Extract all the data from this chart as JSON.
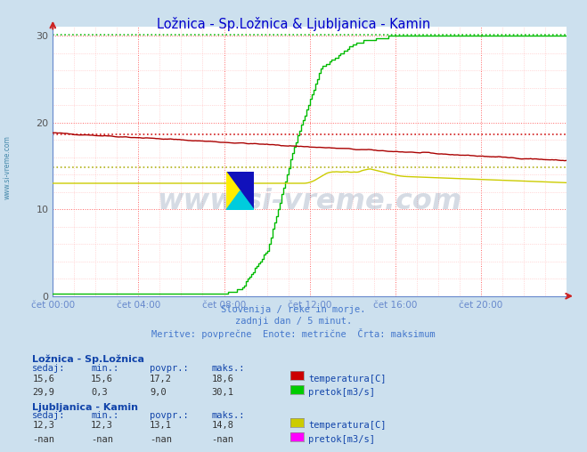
{
  "title": "Ložnica - Sp.Ložnica & Ljubljanica - Kamin",
  "title_color": "#0000cc",
  "bg_color": "#cce0ee",
  "plot_bg_color": "#ffffff",
  "xlim": [
    0,
    288
  ],
  "ylim": [
    0,
    31
  ],
  "yticks": [
    0,
    10,
    20,
    30
  ],
  "xtick_labels": [
    "čet 00:00",
    "čet 04:00",
    "čet 08:00",
    "čet 12:00",
    "čet 16:00",
    "čet 20:00"
  ],
  "xtick_positions": [
    0,
    48,
    96,
    144,
    192,
    240
  ],
  "subtitle_lines": [
    "Slovenija / reke in morje.",
    "zadnji dan / 5 minut.",
    "Meritve: povprečne  Enote: metrične  Črta: maksimum"
  ],
  "watermark": "www.si-vreme.com",
  "watermark_color": "#1a3a6a",
  "watermark_alpha": 0.18,
  "red_dashed_y": 18.6,
  "yellow_dashed_y": 14.8,
  "green_dashed_y": 30.1,
  "legend_title1": "Ložnica - Sp.Ložnica",
  "legend_title2": "Ljubljanica - Kamin",
  "legend_rows1": [
    {
      "sedaj": "15,6",
      "min": "15,6",
      "povpr": "17,2",
      "maks": "18,6",
      "color": "#cc0000",
      "label": "temperatura[C]"
    },
    {
      "sedaj": "29,9",
      "min": "0,3",
      "povpr": "9,0",
      "maks": "30,1",
      "color": "#00cc00",
      "label": "pretok[m3/s]"
    }
  ],
  "legend_rows2": [
    {
      "sedaj": "12,3",
      "min": "12,3",
      "povpr": "13,1",
      "maks": "14,8",
      "color": "#cccc00",
      "label": "temperatura[C]"
    },
    {
      "sedaj": "-nan",
      "min": "-nan",
      "povpr": "-nan",
      "maks": "-nan",
      "color": "#ff00ff",
      "label": "pretok[m3/s]"
    }
  ],
  "col_headers": [
    "sedaj:",
    "min.:",
    "povpr.:",
    "maks.:"
  ],
  "label_color": "#1144aa",
  "val_color": "#333333",
  "subtitle_color": "#4477cc",
  "axis_color": "#6688cc",
  "arrow_color": "#cc2222",
  "sidebar_color": "#4488aa"
}
